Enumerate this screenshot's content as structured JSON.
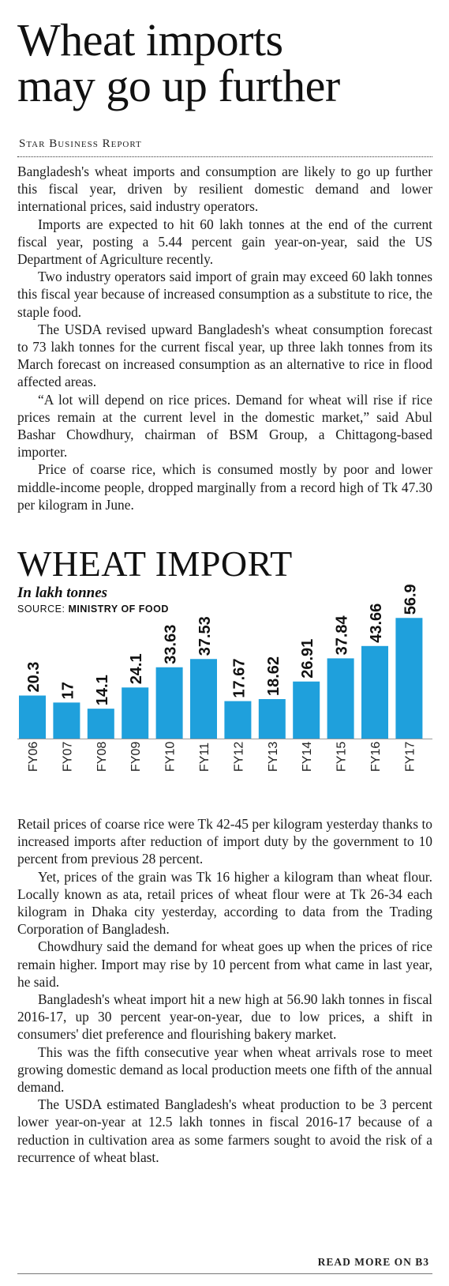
{
  "article": {
    "headline_line1": "Wheat imports",
    "headline_line2": "may go up further",
    "byline": "Star Business Report",
    "paragraphs_top": [
      "Bangladesh's wheat imports and consumption are likely to go up further this fiscal year, driven by resilient domestic demand and lower international prices, said industry operators.",
      "Imports are expected to hit 60 lakh tonnes at the end of the current fiscal year, posting a 5.44 percent gain year-on-year, said the US Department of Agriculture recently.",
      "Two industry operators said import of grain may exceed 60 lakh tonnes this fiscal year because of increased consumption as a substitute to rice, the staple food.",
      "The USDA revised upward Bangladesh's wheat consumption forecast to 73 lakh tonnes for the current fiscal year, up three lakh tonnes from its March forecast on increased consumption as an alternative to rice in flood affected areas.",
      "“A lot will depend on rice prices. Demand for wheat will rise if rice prices remain at the current level in the domestic market,” said Abul Bashar Chowdhury, chairman of BSM Group, a Chittagong-based importer.",
      "Price of coarse rice, which is consumed mostly by poor and lower middle-income people, dropped marginally from a record high of Tk 47.30 per kilogram in June."
    ],
    "paragraphs_bottom": [
      "Retail prices of coarse rice were Tk 42-45 per kilogram yesterday thanks to increased imports after reduction of import duty by the government to 10 percent from previous 28 percent.",
      "Yet, prices of the grain was Tk 16 higher a kilogram than wheat flour. Locally known as ata, retail prices of wheat flour were at Tk 26-34 each kilogram in Dhaka city yesterday, according to data from the Trading Corporation of Bangladesh.",
      "Chowdhury said the demand for wheat goes up when the prices of rice remain higher. Import may rise by 10 percent from what came in last year, he said.",
      "Bangladesh's wheat import hit a new high at 56.90 lakh tonnes in fiscal 2016-17, up 30 percent year-on-year, due to low prices, a shift in consumers' diet preference and flourishing bakery market.",
      "This was the fifth consecutive year when wheat arrivals rose to meet growing domestic demand as local production meets one fifth of the annual demand.",
      "The USDA estimated Bangladesh's wheat production to be 3 percent lower year-on-year at 12.5 lakh tonnes in fiscal 2016-17 because of a reduction in cultivation area as some farmers sought to avoid the risk of a recurrence of wheat blast."
    ],
    "read_more": "READ MORE ON B3"
  },
  "chart_data": {
    "type": "bar",
    "title": "WHEAT IMPORT",
    "subtitle": "In lakh tonnes",
    "source_label": "SOURCE:",
    "source_name": "MINISTRY OF FOOD",
    "categories": [
      "FY06",
      "FY07",
      "FY08",
      "FY09",
      "FY10",
      "FY11",
      "FY12",
      "FY13",
      "FY14",
      "FY15",
      "FY16",
      "FY17"
    ],
    "values": [
      20.3,
      17,
      14.1,
      24.1,
      33.63,
      37.53,
      17.67,
      18.62,
      26.91,
      37.84,
      43.66,
      56.9
    ],
    "value_labels": [
      "20.3",
      "17",
      "14.1",
      "24.1",
      "33.63",
      "37.53",
      "17.67",
      "18.62",
      "26.91",
      "37.84",
      "43.66",
      "56.9"
    ],
    "bar_color": "#1fa0dc",
    "ylim": [
      0,
      57
    ],
    "grid": false
  }
}
